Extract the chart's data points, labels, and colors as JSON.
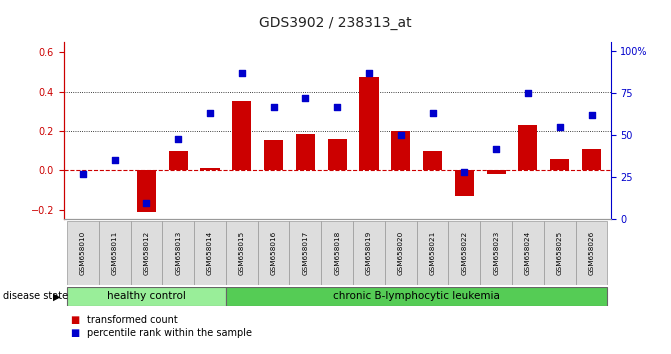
{
  "title": "GDS3902 / 238313_at",
  "samples": [
    "GSM658010",
    "GSM658011",
    "GSM658012",
    "GSM658013",
    "GSM658014",
    "GSM658015",
    "GSM658016",
    "GSM658017",
    "GSM658018",
    "GSM658019",
    "GSM658020",
    "GSM658021",
    "GSM658022",
    "GSM658023",
    "GSM658024",
    "GSM658025",
    "GSM658026"
  ],
  "bar_values": [
    0.0,
    0.0,
    -0.21,
    0.1,
    0.01,
    0.35,
    0.155,
    0.185,
    0.16,
    0.475,
    0.2,
    0.1,
    -0.13,
    -0.02,
    0.23,
    0.055,
    0.11
  ],
  "dot_values_pct": [
    27,
    35,
    10,
    48,
    63,
    87,
    67,
    72,
    67,
    87,
    50,
    63,
    28,
    42,
    75,
    55,
    62
  ],
  "healthy_count": 5,
  "leukemia_count": 12,
  "bar_color": "#CC0000",
  "dot_color": "#0000CC",
  "zero_line_color": "#CC0000",
  "grid_color": "#000000",
  "left_ylim": [
    -0.25,
    0.65
  ],
  "right_ylim": [
    0,
    105
  ],
  "left_yticks": [
    -0.2,
    0.0,
    0.2,
    0.4,
    0.6
  ],
  "right_yticks": [
    0,
    25,
    50,
    75,
    100
  ],
  "right_yticklabels": [
    "0",
    "25",
    "50",
    "75",
    "100%"
  ],
  "healthy_label": "healthy control",
  "leukemia_label": "chronic B-lymphocytic leukemia",
  "disease_state_label": "disease state",
  "legend_bar_label": "transformed count",
  "legend_dot_label": "percentile rank within the sample",
  "healthy_color": "#99EE99",
  "leukemia_color": "#55CC55",
  "sample_box_color": "#DDDDDD",
  "background_color": "#FFFFFF"
}
